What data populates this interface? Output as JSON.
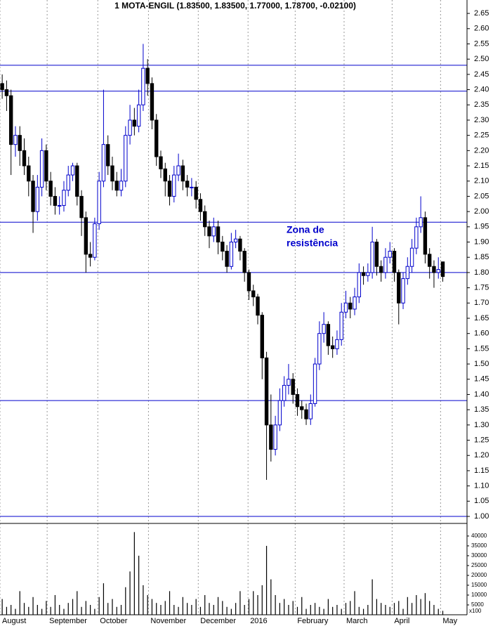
{
  "chart_data": [
    {
      "type": "candlestick",
      "title": "1 MOTA-ENGIL (1.83500, 1.83500, 1.77000, 1.78700, -0.02100)",
      "annotation": [
        "Zona de",
        "resistência"
      ],
      "open": [
        2.42,
        2.4,
        2.38,
        2.22,
        2.25,
        2.2,
        2.15,
        2.1,
        2.0,
        2.08,
        2.2,
        2.1,
        2.05,
        2.02,
        2.02,
        2.07,
        2.12,
        2.15,
        2.05,
        1.98,
        1.86,
        1.85,
        1.96,
        2.1,
        2.22,
        2.15,
        2.1,
        2.07,
        2.1,
        2.25,
        2.3,
        2.28,
        2.35,
        2.47,
        2.42,
        2.3,
        2.18,
        2.14,
        2.1,
        2.05,
        2.12,
        2.15,
        2.1,
        2.08,
        2.08,
        2.04,
        2.0,
        1.95,
        1.92,
        1.95,
        1.9,
        1.87,
        1.82,
        1.9,
        1.91,
        1.87,
        1.8,
        1.74,
        1.72,
        1.66,
        1.52,
        1.3,
        1.22,
        1.3,
        1.38,
        1.43,
        1.45,
        1.4,
        1.36,
        1.35,
        1.32,
        1.37,
        1.5,
        1.6,
        1.63,
        1.56,
        1.55,
        1.58,
        1.67,
        1.7,
        1.68,
        1.72,
        1.8,
        1.79,
        1.8,
        1.9,
        1.82,
        1.8,
        1.85,
        1.87,
        1.8,
        1.7,
        1.78,
        1.82,
        1.88,
        1.95,
        1.98,
        1.86,
        1.82,
        1.8,
        1.835
      ],
      "high": [
        2.45,
        2.43,
        2.4,
        2.28,
        2.28,
        2.24,
        2.18,
        2.12,
        2.12,
        2.24,
        2.22,
        2.13,
        2.08,
        2.05,
        2.1,
        2.15,
        2.16,
        2.16,
        2.07,
        2.0,
        1.9,
        1.98,
        2.13,
        2.4,
        2.25,
        2.18,
        2.13,
        2.14,
        2.28,
        2.35,
        2.34,
        2.4,
        2.55,
        2.5,
        2.44,
        2.32,
        2.2,
        2.16,
        2.12,
        2.15,
        2.19,
        2.17,
        2.12,
        2.11,
        2.1,
        2.06,
        2.02,
        1.97,
        1.98,
        1.97,
        1.92,
        1.89,
        1.93,
        1.94,
        1.92,
        1.88,
        1.81,
        1.76,
        1.73,
        1.67,
        1.54,
        1.4,
        1.33,
        1.42,
        1.46,
        1.5,
        1.47,
        1.42,
        1.38,
        1.37,
        1.4,
        1.52,
        1.64,
        1.67,
        1.64,
        1.59,
        1.61,
        1.7,
        1.74,
        1.72,
        1.75,
        1.83,
        1.82,
        1.83,
        1.95,
        1.91,
        1.84,
        1.88,
        1.9,
        1.88,
        1.81,
        1.8,
        1.85,
        1.91,
        1.98,
        2.05,
        2.0,
        1.88,
        1.84,
        1.85,
        1.835
      ],
      "low": [
        2.37,
        2.33,
        2.12,
        2.18,
        2.15,
        2.12,
        2.05,
        1.93,
        1.97,
        2.05,
        2.07,
        2.02,
        1.99,
        1.99,
        2.0,
        2.05,
        2.1,
        2.02,
        1.92,
        1.8,
        1.82,
        1.84,
        1.94,
        2.08,
        2.12,
        2.07,
        2.05,
        2.05,
        2.08,
        2.22,
        2.25,
        2.26,
        2.33,
        2.38,
        2.27,
        2.15,
        2.11,
        2.05,
        2.02,
        2.03,
        2.1,
        2.07,
        2.05,
        2.05,
        2.01,
        1.97,
        1.92,
        1.88,
        1.9,
        1.86,
        1.84,
        1.8,
        1.81,
        1.88,
        1.84,
        1.77,
        1.71,
        1.69,
        1.63,
        1.45,
        1.12,
        1.18,
        1.2,
        1.28,
        1.36,
        1.4,
        1.37,
        1.33,
        1.32,
        1.3,
        1.3,
        1.36,
        1.48,
        1.57,
        1.53,
        1.52,
        1.53,
        1.56,
        1.65,
        1.65,
        1.66,
        1.7,
        1.76,
        1.77,
        1.78,
        1.79,
        1.77,
        1.78,
        1.83,
        1.77,
        1.63,
        1.68,
        1.76,
        1.8,
        1.86,
        1.93,
        1.83,
        1.78,
        1.75,
        1.78,
        1.77
      ],
      "close": [
        2.4,
        2.38,
        2.22,
        2.25,
        2.2,
        2.15,
        2.1,
        2.0,
        2.08,
        2.2,
        2.1,
        2.05,
        2.02,
        2.02,
        2.07,
        2.12,
        2.15,
        2.05,
        1.98,
        1.86,
        1.85,
        1.96,
        2.1,
        2.22,
        2.15,
        2.1,
        2.07,
        2.1,
        2.25,
        2.3,
        2.28,
        2.35,
        2.47,
        2.42,
        2.3,
        2.18,
        2.14,
        2.1,
        2.05,
        2.12,
        2.15,
        2.1,
        2.08,
        2.08,
        2.04,
        2.0,
        1.95,
        1.92,
        1.95,
        1.9,
        1.87,
        1.82,
        1.9,
        1.91,
        1.87,
        1.8,
        1.74,
        1.72,
        1.66,
        1.52,
        1.3,
        1.22,
        1.3,
        1.38,
        1.43,
        1.45,
        1.4,
        1.36,
        1.35,
        1.32,
        1.37,
        1.5,
        1.6,
        1.63,
        1.56,
        1.55,
        1.58,
        1.67,
        1.7,
        1.68,
        1.72,
        1.8,
        1.79,
        1.8,
        1.9,
        1.82,
        1.8,
        1.85,
        1.87,
        1.8,
        1.7,
        1.78,
        1.82,
        1.88,
        1.95,
        1.98,
        1.86,
        1.82,
        1.8,
        1.81,
        1.787
      ],
      "up_color": "#0000cc",
      "down_color": "#000000",
      "xlim": [
        0,
        106
      ],
      "xticks": [
        {
          "value": 0,
          "label": "August"
        },
        {
          "value": 10.7,
          "label": "September"
        },
        {
          "value": 22.2,
          "label": "October"
        },
        {
          "value": 33.7,
          "label": "November"
        },
        {
          "value": 45,
          "label": "December"
        },
        {
          "value": 56.3,
          "label": "2016"
        },
        {
          "value": 67,
          "label": "February"
        },
        {
          "value": 78.1,
          "label": "March"
        },
        {
          "value": 89,
          "label": "April"
        },
        {
          "value": 100,
          "label": "May"
        }
      ],
      "ylim": [
        0.977,
        2.694
      ],
      "yticks": [
        {
          "value": 1.0,
          "label": "1.00"
        },
        {
          "value": 1.05,
          "label": "1.05"
        },
        {
          "value": 1.1,
          "label": "1.10"
        },
        {
          "value": 1.15,
          "label": "1.15"
        },
        {
          "value": 1.2,
          "label": "1.20"
        },
        {
          "value": 1.25,
          "label": "1.25"
        },
        {
          "value": 1.3,
          "label": "1.30"
        },
        {
          "value": 1.35,
          "label": "1.35"
        },
        {
          "value": 1.4,
          "label": "1.40"
        },
        {
          "value": 1.45,
          "label": "1.45"
        },
        {
          "value": 1.5,
          "label": "1.50"
        },
        {
          "value": 1.55,
          "label": "1.55"
        },
        {
          "value": 1.6,
          "label": "1.60"
        },
        {
          "value": 1.65,
          "label": "1.65"
        },
        {
          "value": 1.7,
          "label": "1.70"
        },
        {
          "value": 1.75,
          "label": "1.75"
        },
        {
          "value": 1.8,
          "label": "1.80"
        },
        {
          "value": 1.85,
          "label": "1.85"
        },
        {
          "value": 1.9,
          "label": "1.90"
        },
        {
          "value": 1.95,
          "label": "1.95"
        },
        {
          "value": 2.0,
          "label": "2.00"
        },
        {
          "value": 2.05,
          "label": "2.05"
        },
        {
          "value": 2.1,
          "label": "2.10"
        },
        {
          "value": 2.15,
          "label": "2.15"
        },
        {
          "value": 2.2,
          "label": "2.20"
        },
        {
          "value": 2.25,
          "label": "2.25"
        },
        {
          "value": 2.3,
          "label": "2.30"
        },
        {
          "value": 2.35,
          "label": "2.35"
        },
        {
          "value": 2.4,
          "label": "2.40"
        },
        {
          "value": 2.45,
          "label": "2.45"
        },
        {
          "value": 2.5,
          "label": "2.50"
        },
        {
          "value": 2.55,
          "label": "2.55"
        },
        {
          "value": 2.6,
          "label": "2.60"
        },
        {
          "value": 2.65,
          "label": "2.65"
        }
      ],
      "hlines": [
        2.48,
        2.395,
        1.965,
        1.8,
        1.38,
        1.0
      ],
      "hline_color": "#0000cc"
    },
    {
      "type": "bar",
      "values": [
        8000,
        4000,
        5000,
        3000,
        12000,
        6000,
        4000,
        9000,
        5000,
        3000,
        7000,
        4000,
        10000,
        5000,
        3000,
        6000,
        8000,
        12000,
        4000,
        7000,
        5000,
        3000,
        9000,
        16000,
        6000,
        8000,
        4000,
        5000,
        14000,
        22000,
        42000,
        30000,
        15000,
        10000,
        8000,
        6000,
        5000,
        7000,
        12000,
        5000,
        4000,
        9000,
        6000,
        5000,
        8000,
        4000,
        10000,
        6000,
        5000,
        9000,
        7000,
        4000,
        3000,
        6000,
        12000,
        5000,
        8000,
        12000,
        10000,
        15000,
        35000,
        18000,
        10000,
        6000,
        8000,
        5000,
        7000,
        4000,
        9000,
        3000,
        5000,
        6000,
        4000,
        3000,
        8000,
        4000,
        5000,
        3000,
        6000,
        7000,
        12000,
        4000,
        3000,
        5000,
        18000,
        8000,
        6000,
        5000,
        4000,
        6000,
        7000,
        3000,
        9000,
        6000,
        10000,
        8000,
        11000,
        7000,
        5000,
        3000,
        2000
      ],
      "color": "#000000",
      "unit_label": "x100",
      "ylim": [
        0,
        46400
      ],
      "yticks": [
        5000,
        10000,
        15000,
        20000,
        25000,
        30000,
        35000,
        40000
      ]
    }
  ]
}
